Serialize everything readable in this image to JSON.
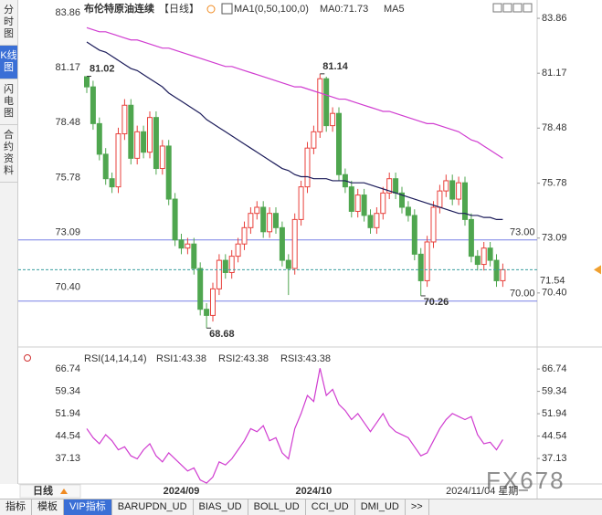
{
  "sidebar": [
    "分时图",
    "K线图",
    "闪电图",
    "合约资料"
  ],
  "footer_period": "日线",
  "watermark": "FX678",
  "toolbar": [
    "指标",
    "模板",
    "VIP指标",
    "BARUPDN_UD",
    "BIAS_UD",
    "BOLL_UD",
    "CCI_UD",
    "DMI_UD",
    ">>"
  ],
  "chart_data": [
    {
      "type": "candlestick",
      "title": "布伦特原油连续",
      "period": "【日线】",
      "ma_legend": [
        "MA1(0,50,100,0)",
        "MA0:71.73",
        "MA5"
      ],
      "categories": [
        null,
        null,
        null,
        null,
        null,
        null,
        null,
        null,
        null,
        null,
        null,
        null,
        null,
        null,
        null,
        "2024/09",
        null,
        null,
        null,
        null,
        null,
        null,
        null,
        null,
        null,
        null,
        null,
        null,
        null,
        null,
        null,
        null,
        null,
        null,
        null,
        null,
        "2024/10",
        null,
        null,
        null,
        null,
        null,
        null,
        null,
        null,
        null,
        null,
        null,
        null,
        null,
        null,
        null,
        null,
        null,
        null,
        null,
        null,
        null,
        null,
        null,
        null,
        null,
        null,
        null,
        null,
        null,
        "2024/11/04 星期一"
      ],
      "open": [
        81.0,
        80.5,
        78.7,
        77.2,
        76.0,
        75.6,
        78.2,
        79.6,
        77.0,
        78.3,
        77.3,
        79.0,
        76.5,
        77.6,
        75.0,
        73.0,
        72.6,
        72.8,
        71.6,
        69.6,
        69.3,
        70.6,
        72.0,
        71.4,
        72.2,
        72.8,
        73.6,
        74.3,
        74.6,
        73.4,
        74.3,
        73.6,
        72.0,
        71.6,
        74.0,
        75.6,
        77.5,
        78.3,
        80.9,
        78.6,
        79.2,
        76.2,
        75.6,
        74.4,
        75.2,
        74.2,
        73.6,
        74.3,
        75.3,
        76.0,
        75.3,
        74.6,
        74.2,
        72.3,
        71.0,
        72.9,
        74.6,
        75.4,
        75.9,
        75.0,
        75.8,
        74.0,
        72.2,
        71.8,
        72.6,
        72.0,
        71.0
      ],
      "high": [
        81.02,
        80.8,
        79.0,
        77.5,
        76.3,
        78.5,
        79.9,
        79.9,
        78.6,
        78.6,
        79.3,
        79.3,
        77.9,
        77.9,
        75.3,
        73.3,
        73.1,
        73.1,
        71.9,
        69.9,
        70.9,
        72.3,
        72.3,
        72.5,
        73.1,
        73.9,
        74.6,
        74.9,
        74.9,
        74.6,
        74.6,
        73.9,
        72.3,
        74.3,
        75.9,
        77.8,
        78.6,
        81.14,
        81.0,
        79.5,
        79.5,
        76.5,
        75.9,
        75.5,
        75.5,
        74.5,
        74.6,
        75.6,
        76.3,
        76.3,
        75.6,
        74.9,
        74.5,
        72.6,
        73.2,
        74.9,
        75.7,
        76.2,
        76.2,
        76.1,
        76.1,
        74.3,
        72.5,
        72.9,
        72.9,
        72.3,
        71.84
      ],
      "low": [
        80.2,
        78.4,
        76.9,
        75.7,
        75.3,
        75.3,
        77.9,
        76.7,
        76.7,
        77.0,
        77.0,
        76.2,
        76.2,
        74.7,
        72.7,
        72.3,
        72.3,
        71.3,
        69.3,
        68.68,
        69.0,
        70.3,
        71.1,
        71.1,
        71.9,
        72.5,
        73.3,
        74.0,
        73.1,
        73.1,
        73.3,
        71.7,
        70.3,
        71.3,
        73.7,
        75.3,
        77.2,
        78.0,
        78.3,
        78.3,
        75.9,
        75.3,
        74.1,
        74.1,
        73.9,
        73.3,
        73.3,
        74.0,
        75.0,
        75.0,
        74.3,
        73.9,
        72.0,
        70.26,
        70.7,
        72.6,
        74.3,
        75.1,
        74.7,
        74.7,
        73.7,
        71.9,
        71.5,
        71.5,
        71.7,
        70.7,
        70.7
      ],
      "close": [
        80.5,
        78.7,
        77.2,
        76.0,
        75.6,
        78.2,
        79.6,
        77.0,
        78.3,
        77.3,
        79.0,
        76.5,
        77.6,
        75.0,
        73.0,
        72.6,
        72.8,
        71.6,
        69.6,
        69.3,
        70.6,
        72.0,
        71.4,
        72.2,
        72.8,
        73.6,
        74.3,
        74.6,
        73.4,
        74.3,
        73.6,
        72.0,
        71.6,
        74.0,
        75.6,
        77.5,
        78.3,
        80.9,
        78.6,
        79.2,
        76.2,
        75.6,
        74.4,
        75.2,
        74.2,
        73.6,
        74.3,
        75.3,
        76.0,
        75.3,
        74.6,
        74.2,
        72.3,
        71.0,
        72.9,
        74.6,
        75.4,
        75.9,
        75.0,
        75.8,
        74.0,
        72.2,
        71.8,
        72.6,
        72.0,
        71.0,
        71.54
      ],
      "up_color": "#e8413c",
      "down_color": "#4fa64f",
      "series": [
        {
          "color": "#1c1c5a",
          "values": [
            82.7,
            82.5,
            82.3,
            82.2,
            82.0,
            81.8,
            81.6,
            81.4,
            81.3,
            81.1,
            80.9,
            80.7,
            80.5,
            80.2,
            80.0,
            79.8,
            79.6,
            79.4,
            79.2,
            78.9,
            78.7,
            78.5,
            78.3,
            78.1,
            77.9,
            77.7,
            77.5,
            77.3,
            77.1,
            76.9,
            76.7,
            76.5,
            76.4,
            76.2,
            76.1,
            76.1,
            76.0,
            76.0,
            76.0,
            75.9,
            75.9,
            75.9,
            75.8,
            75.8,
            75.8,
            75.7,
            75.6,
            75.5,
            75.4,
            75.3,
            75.2,
            75.1,
            75.0,
            74.9,
            74.8,
            74.7,
            74.6,
            74.5,
            74.4,
            74.3,
            74.3,
            74.2,
            74.2,
            74.1,
            74.1,
            74.0,
            74.0
          ]
        },
        {
          "color": "#d03cd0",
          "values": [
            83.4,
            83.3,
            83.2,
            83.2,
            83.1,
            83.0,
            82.9,
            82.8,
            82.8,
            82.7,
            82.6,
            82.5,
            82.4,
            82.4,
            82.3,
            82.2,
            82.1,
            82.0,
            81.9,
            81.8,
            81.7,
            81.6,
            81.5,
            81.5,
            81.4,
            81.3,
            81.2,
            81.1,
            81.0,
            80.9,
            80.8,
            80.7,
            80.6,
            80.5,
            80.5,
            80.4,
            80.3,
            80.2,
            80.1,
            80.0,
            79.9,
            79.9,
            79.8,
            79.7,
            79.6,
            79.5,
            79.4,
            79.3,
            79.3,
            79.2,
            79.1,
            79.0,
            78.9,
            78.8,
            78.7,
            78.7,
            78.6,
            78.5,
            78.4,
            78.3,
            78.1,
            77.9,
            77.8,
            77.6,
            77.4,
            77.2,
            77.0
          ]
        }
      ],
      "ylim": [
        68.2,
        84.4
      ],
      "yticks": [
        {
          "value": 70.4,
          "label": "70.40"
        },
        73.09,
        75.78,
        78.48,
        81.17,
        83.86
      ],
      "hlines": [
        {
          "value": 73,
          "label": "73.00"
        },
        {
          "value": 70,
          "label": "70.00"
        }
      ],
      "hline_color": "#7880e6",
      "last_line_color": "#3a9ea0",
      "last_label_color": "#f0a030"
    },
    {
      "type": "line",
      "legend": [
        "RSI(14,14,14)",
        "RSI1:43.38",
        "RSI2:43.38",
        "RSI3:43.38"
      ],
      "series": [
        {
          "color": "#d03cd0",
          "values": [
            47,
            44,
            42,
            45,
            43,
            40,
            41,
            38,
            37,
            40,
            42,
            38,
            36,
            39,
            37,
            35,
            33,
            34,
            30,
            29,
            31,
            36,
            35,
            37,
            40,
            43,
            47,
            46,
            48,
            43,
            44,
            39,
            37,
            47,
            52,
            58,
            56,
            67,
            58,
            60,
            55,
            53,
            50,
            52,
            49,
            46,
            49,
            52,
            48,
            46,
            45,
            44,
            41,
            38,
            39,
            43,
            47,
            50,
            52,
            51,
            50,
            51,
            45,
            42,
            42.5,
            40,
            43.38
          ]
        }
      ],
      "ylim": [
        28.7,
        70.4
      ],
      "yticks": [
        66.74,
        59.34,
        51.94,
        44.54,
        37.13
      ]
    }
  ]
}
